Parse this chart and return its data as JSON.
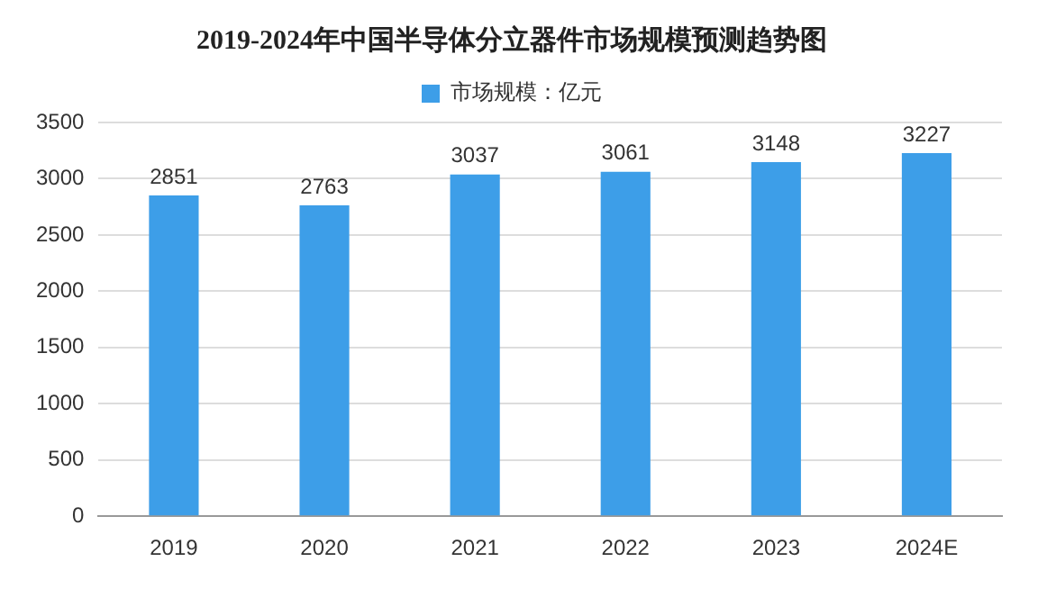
{
  "chart_data": {
    "type": "bar",
    "title": "2019-2024年中国半导体分立器件市场规模预测趋势图",
    "categories": [
      "2019",
      "2020",
      "2021",
      "2022",
      "2023",
      "2024E"
    ],
    "series": [
      {
        "name": "市场规模：亿元",
        "color": "#3d9ee8",
        "values": [
          2851,
          2763,
          3037,
          3061,
          3148,
          3227
        ]
      }
    ],
    "ylim": [
      0,
      3500
    ],
    "yticks": [
      0,
      500,
      1000,
      1500,
      2000,
      2500,
      3000,
      3500
    ],
    "grid": "y",
    "legend": "top",
    "data_labels": true
  }
}
